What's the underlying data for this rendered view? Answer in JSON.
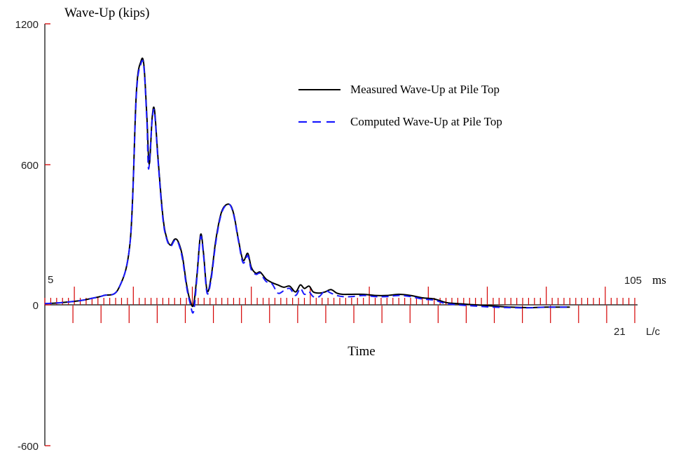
{
  "chart_data": {
    "type": "line",
    "ylabel": "Wave-Up (kips)",
    "xlabel": "Time",
    "yticks": [
      1200,
      600,
      0,
      -600
    ],
    "ylim": [
      -600,
      1200
    ],
    "time_axis": {
      "start_label": "5",
      "end_label": "105",
      "unit": "ms",
      "range": [
        5,
        105
      ],
      "minor_step": 1
    },
    "lc_axis": {
      "end_label": "21",
      "unit": "L/c",
      "range": [
        0,
        21
      ],
      "step": 1
    },
    "legend_position": "top-right",
    "series": [
      {
        "name": "Measured Wave-Up at Pile Top",
        "color": "#000000",
        "style": "solid",
        "points": [
          [
            5,
            5
          ],
          [
            8,
            10
          ],
          [
            11,
            18
          ],
          [
            13,
            28
          ],
          [
            15,
            40
          ],
          [
            17.5,
            70
          ],
          [
            19.5,
            280
          ],
          [
            20.5,
            900
          ],
          [
            21.3,
            1040
          ],
          [
            21.8,
            1020
          ],
          [
            22.3,
            800
          ],
          [
            22.7,
            600
          ],
          [
            23.2,
            800
          ],
          [
            23.6,
            830
          ],
          [
            24.2,
            620
          ],
          [
            25,
            380
          ],
          [
            25.6,
            290
          ],
          [
            26.3,
            255
          ],
          [
            27,
            280
          ],
          [
            27.6,
            270
          ],
          [
            28.3,
            210
          ],
          [
            29,
            90
          ],
          [
            29.6,
            20
          ],
          [
            30.2,
            0
          ],
          [
            30.8,
            130
          ],
          [
            31.4,
            300
          ],
          [
            31.9,
            220
          ],
          [
            32.5,
            60
          ],
          [
            33.2,
            120
          ],
          [
            34,
            280
          ],
          [
            35,
            400
          ],
          [
            36.2,
            430
          ],
          [
            37,
            390
          ],
          [
            37.8,
            280
          ],
          [
            38.6,
            190
          ],
          [
            39.4,
            220
          ],
          [
            40,
            160
          ],
          [
            40.8,
            135
          ],
          [
            41.5,
            140
          ],
          [
            42.5,
            110
          ],
          [
            43.5,
            95
          ],
          [
            44.5,
            85
          ],
          [
            45.5,
            75
          ],
          [
            46.5,
            80
          ],
          [
            47.5,
            55
          ],
          [
            48.3,
            85
          ],
          [
            49,
            70
          ],
          [
            49.8,
            80
          ],
          [
            50.5,
            55
          ],
          [
            51.5,
            50
          ],
          [
            52.5,
            55
          ],
          [
            53.5,
            65
          ],
          [
            54.5,
            50
          ],
          [
            55.5,
            45
          ],
          [
            57,
            45
          ],
          [
            59,
            45
          ],
          [
            61,
            40
          ],
          [
            63,
            40
          ],
          [
            65,
            45
          ],
          [
            67,
            40
          ],
          [
            69,
            30
          ],
          [
            71,
            25
          ],
          [
            73,
            10
          ],
          [
            75,
            5
          ],
          [
            78,
            0
          ],
          [
            81,
            -5
          ],
          [
            84,
            -10
          ],
          [
            87,
            -12
          ],
          [
            90,
            -10
          ],
          [
            94,
            -10
          ]
        ]
      },
      {
        "name": "Computed Wave-Up at Pile Top",
        "color": "#1a1aff",
        "style": "dashed",
        "points": [
          [
            5,
            5
          ],
          [
            8,
            10
          ],
          [
            11,
            18
          ],
          [
            13,
            28
          ],
          [
            15,
            40
          ],
          [
            17.5,
            70
          ],
          [
            19.5,
            280
          ],
          [
            20.5,
            890
          ],
          [
            21.3,
            1030
          ],
          [
            21.8,
            1010
          ],
          [
            22.3,
            780
          ],
          [
            22.6,
            580
          ],
          [
            23.2,
            790
          ],
          [
            23.6,
            820
          ],
          [
            24.2,
            610
          ],
          [
            25,
            370
          ],
          [
            25.6,
            285
          ],
          [
            26.3,
            250
          ],
          [
            27,
            275
          ],
          [
            27.6,
            265
          ],
          [
            28.3,
            200
          ],
          [
            29,
            80
          ],
          [
            29.6,
            10
          ],
          [
            30.2,
            -30
          ],
          [
            30.8,
            120
          ],
          [
            31.4,
            290
          ],
          [
            31.9,
            210
          ],
          [
            32.5,
            50
          ],
          [
            33.2,
            110
          ],
          [
            34,
            270
          ],
          [
            35,
            395
          ],
          [
            36.2,
            430
          ],
          [
            37,
            385
          ],
          [
            37.8,
            275
          ],
          [
            38.6,
            180
          ],
          [
            39.4,
            210
          ],
          [
            40,
            150
          ],
          [
            40.8,
            130
          ],
          [
            41.5,
            135
          ],
          [
            42.5,
            100
          ],
          [
            43.5,
            90
          ],
          [
            44.5,
            50
          ],
          [
            45.5,
            60
          ],
          [
            46.5,
            70
          ],
          [
            47.5,
            40
          ],
          [
            48.3,
            70
          ],
          [
            49,
            45
          ],
          [
            49.8,
            55
          ],
          [
            50.5,
            35
          ],
          [
            51.5,
            35
          ],
          [
            52.5,
            60
          ],
          [
            53.5,
            50
          ],
          [
            54.5,
            40
          ],
          [
            55.5,
            35
          ],
          [
            57,
            35
          ],
          [
            59,
            40
          ],
          [
            61,
            35
          ],
          [
            63,
            35
          ],
          [
            65,
            40
          ],
          [
            67,
            35
          ],
          [
            69,
            25
          ],
          [
            71,
            20
          ],
          [
            73,
            5
          ],
          [
            75,
            0
          ],
          [
            78,
            -5
          ],
          [
            81,
            -10
          ],
          [
            84,
            -12
          ],
          [
            87,
            -13
          ],
          [
            90,
            -10
          ],
          [
            94,
            -10
          ]
        ]
      }
    ]
  }
}
